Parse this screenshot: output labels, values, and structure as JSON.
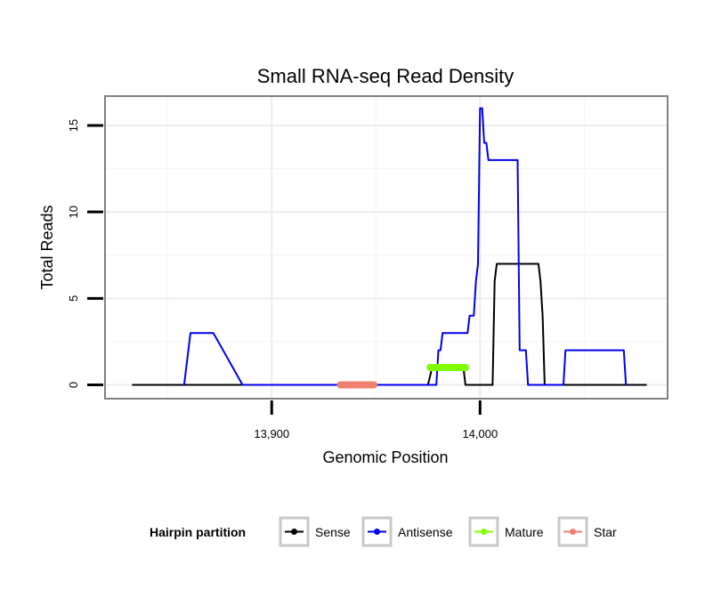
{
  "chart_data": {
    "type": "line",
    "title": "Small RNA-seq Read Density",
    "xlabel": "Genomic Position",
    "ylabel": "Total Reads",
    "xlim": [
      13820,
      14090
    ],
    "ylim": [
      -0.8,
      16.7
    ],
    "x_ticks": [
      {
        "value": 13900,
        "label": "13,900"
      },
      {
        "value": 14000,
        "label": "14,000"
      }
    ],
    "y_ticks": [
      {
        "value": 0,
        "label": "0"
      },
      {
        "value": 5,
        "label": "5"
      },
      {
        "value": 10,
        "label": "10"
      },
      {
        "value": 15,
        "label": "15"
      }
    ],
    "x_minor": [
      13850,
      13950,
      14050
    ],
    "y_minor": [
      2.5,
      7.5,
      12.5
    ],
    "grid": true,
    "legend": {
      "title": "Hairpin partition",
      "placement": "bottom",
      "entries": [
        "Sense",
        "Antisense",
        "Mature",
        "Star"
      ]
    },
    "series": [
      {
        "name": "Sense",
        "color": "#000000",
        "width": 2,
        "x": [
          13833,
          13975,
          13977,
          13992,
          13993,
          14006,
          14007,
          14008,
          14028,
          14029,
          14030,
          14031,
          14032,
          14080
        ],
        "y": [
          0,
          0,
          1,
          1,
          0,
          0,
          6,
          7,
          7,
          6,
          4,
          0,
          0,
          0
        ]
      },
      {
        "name": "Antisense",
        "color": "#0000ee",
        "width": 2,
        "x": [
          13858,
          13860,
          13861,
          13872,
          13886,
          13979,
          13980,
          13981,
          13982,
          13983,
          13994,
          13995,
          13997,
          13998,
          13999,
          14000,
          14001,
          14002,
          14003,
          14004,
          14005,
          14018,
          14019,
          14022,
          14023,
          14040,
          14041,
          14069,
          14070
        ],
        "y": [
          0,
          2,
          3,
          3,
          0,
          0,
          2,
          2,
          3,
          3,
          3,
          4,
          4,
          6,
          7,
          16,
          16,
          14,
          14,
          13,
          13,
          13,
          2,
          2,
          0,
          0,
          2,
          2,
          0
        ]
      },
      {
        "name": "Mature",
        "color": "#7fff00",
        "width": 8,
        "x": [
          13976,
          13993
        ],
        "y": [
          1,
          1
        ]
      },
      {
        "name": "Star",
        "color": "#f08070",
        "width": 8,
        "x": [
          13933,
          13949
        ],
        "y": [
          0,
          0
        ]
      }
    ]
  }
}
